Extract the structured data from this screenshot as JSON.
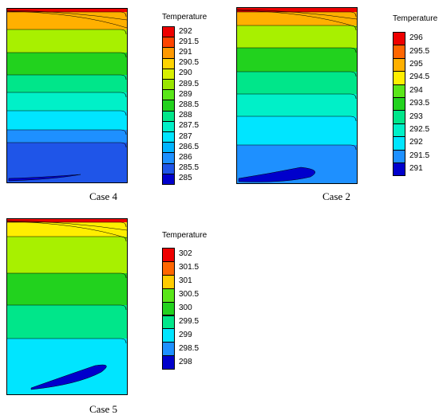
{
  "palette": {
    "blue_dark": "#0000cc",
    "blue": "#1f55e8",
    "blue_mid": "#1e90ff",
    "cyan": "#00e5ff",
    "aqua": "#00f0c8",
    "teal_green": "#00e68a",
    "green": "#22d21e",
    "green_light": "#5ae619",
    "lime": "#a8f000",
    "yellow": "#ffee00",
    "amber": "#ffb000",
    "orange": "#ff6600",
    "red": "#ee0000"
  },
  "panels": [
    {
      "id": "case4",
      "caption": "Case 4",
      "legend_title": "Temperature",
      "legend_ticks": [
        "292",
        "291.5",
        "291",
        "290.5",
        "290",
        "289.5",
        "289",
        "288.5",
        "288",
        "287.5",
        "287",
        "286.5",
        "286",
        "285.5",
        "285"
      ],
      "legend_colors": [
        "#ee0000",
        "#ff4500",
        "#ff9900",
        "#ffd400",
        "#d8f000",
        "#9ae600",
        "#5ae619",
        "#22d21e",
        "#00e68a",
        "#00f0c8",
        "#00e5ff",
        "#00b4ff",
        "#1e90ff",
        "#1f55e8",
        "#0000cc"
      ],
      "bands": [
        "#ffb000",
        "#a8f000",
        "#22d21e",
        "#00e68a",
        "#00f0c8",
        "#00e5ff",
        "#1e90ff",
        "#1f55e8",
        "#0000cc"
      ]
    },
    {
      "id": "case2",
      "caption": "Case 2",
      "legend_title": "Temperature",
      "legend_ticks": [
        "296",
        "295.5",
        "295",
        "294.5",
        "294",
        "293.5",
        "293",
        "292.5",
        "292",
        "291.5",
        "291"
      ],
      "legend_colors": [
        "#ee0000",
        "#ff6600",
        "#ffb000",
        "#ffee00",
        "#5ae619",
        "#22d21e",
        "#00e68a",
        "#00f0c8",
        "#00e5ff",
        "#1e90ff",
        "#0000cc"
      ],
      "bands": [
        "#ffb000",
        "#a8f000",
        "#22d21e",
        "#00e68a",
        "#00f0c8",
        "#00e5ff",
        "#1e90ff",
        "#0000cc"
      ]
    },
    {
      "id": "case5",
      "caption": "Case 5",
      "legend_title": "Temperature",
      "legend_ticks": [
        "302",
        "301.5",
        "301",
        "300.5",
        "300",
        "299.5",
        "299",
        "298.5",
        "298"
      ],
      "legend_colors": [
        "#ee0000",
        "#ff6600",
        "#ffcc00",
        "#5ae619",
        "#22d21e",
        "#00e68a",
        "#00e5ff",
        "#1e90ff",
        "#0000cc"
      ],
      "bands": [
        "#ffee00",
        "#a8f000",
        "#22d21e",
        "#00e68a",
        "#00e5ff",
        "#1e90ff",
        "#0000cc"
      ]
    }
  ]
}
